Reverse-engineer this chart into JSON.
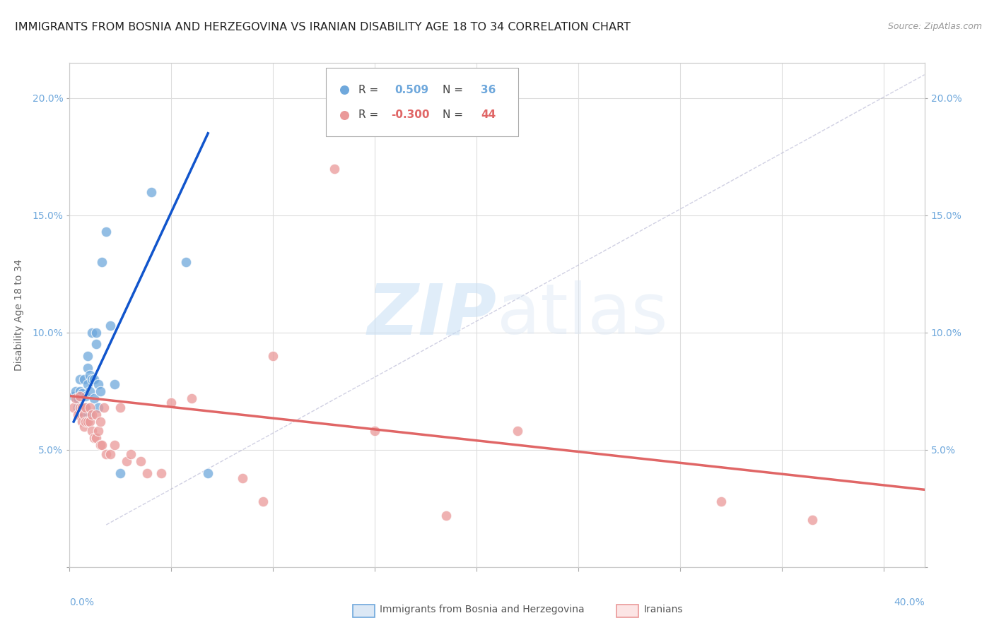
{
  "title": "IMMIGRANTS FROM BOSNIA AND HERZEGOVINA VS IRANIAN DISABILITY AGE 18 TO 34 CORRELATION CHART",
  "source": "Source: ZipAtlas.com",
  "ylabel": "Disability Age 18 to 34",
  "watermark_zip": "ZIP",
  "watermark_atlas": "atlas",
  "blue_color": "#6fa8dc",
  "pink_color": "#ea9999",
  "blue_line_color": "#1155cc",
  "pink_line_color": "#e06666",
  "xlim": [
    0.0,
    0.42
  ],
  "ylim": [
    0.0,
    0.215
  ],
  "xticks": [
    0.0,
    0.05,
    0.1,
    0.15,
    0.2,
    0.25,
    0.3,
    0.35,
    0.4
  ],
  "yticks": [
    0.0,
    0.05,
    0.1,
    0.15,
    0.2
  ],
  "bosnia_points_x": [
    0.002,
    0.003,
    0.004,
    0.004,
    0.005,
    0.005,
    0.006,
    0.006,
    0.007,
    0.007,
    0.007,
    0.008,
    0.008,
    0.009,
    0.009,
    0.009,
    0.01,
    0.01,
    0.01,
    0.011,
    0.011,
    0.012,
    0.012,
    0.013,
    0.013,
    0.014,
    0.014,
    0.015,
    0.016,
    0.018,
    0.02,
    0.022,
    0.025,
    0.04,
    0.057,
    0.068
  ],
  "bosnia_points_y": [
    0.073,
    0.075,
    0.068,
    0.072,
    0.075,
    0.08,
    0.065,
    0.074,
    0.065,
    0.068,
    0.08,
    0.068,
    0.073,
    0.078,
    0.085,
    0.09,
    0.065,
    0.075,
    0.082,
    0.08,
    0.1,
    0.072,
    0.08,
    0.095,
    0.1,
    0.068,
    0.078,
    0.075,
    0.13,
    0.143,
    0.103,
    0.078,
    0.04,
    0.16,
    0.13,
    0.04
  ],
  "iranian_points_x": [
    0.002,
    0.003,
    0.004,
    0.005,
    0.005,
    0.006,
    0.006,
    0.007,
    0.007,
    0.008,
    0.008,
    0.009,
    0.01,
    0.01,
    0.011,
    0.011,
    0.012,
    0.013,
    0.013,
    0.014,
    0.015,
    0.015,
    0.016,
    0.017,
    0.018,
    0.02,
    0.022,
    0.025,
    0.028,
    0.03,
    0.035,
    0.038,
    0.045,
    0.05,
    0.06,
    0.085,
    0.095,
    0.1,
    0.13,
    0.15,
    0.185,
    0.22,
    0.32,
    0.365
  ],
  "iranian_points_y": [
    0.068,
    0.072,
    0.065,
    0.068,
    0.073,
    0.062,
    0.068,
    0.06,
    0.065,
    0.062,
    0.068,
    0.062,
    0.062,
    0.068,
    0.058,
    0.065,
    0.055,
    0.055,
    0.065,
    0.058,
    0.052,
    0.062,
    0.052,
    0.068,
    0.048,
    0.048,
    0.052,
    0.068,
    0.045,
    0.048,
    0.045,
    0.04,
    0.04,
    0.07,
    0.072,
    0.038,
    0.028,
    0.09,
    0.17,
    0.058,
    0.022,
    0.058,
    0.028,
    0.02
  ],
  "bosnia_line_x": [
    0.002,
    0.068
  ],
  "bosnia_line_y": [
    0.062,
    0.185
  ],
  "iranian_line_x": [
    0.0,
    0.42
  ],
  "iranian_line_y": [
    0.073,
    0.033
  ],
  "dashed_line_x": [
    0.018,
    0.42
  ],
  "dashed_line_y": [
    0.018,
    0.21
  ],
  "legend_r1_label": "R = ",
  "legend_r1_val": "0.509",
  "legend_n1_label": "N = ",
  "legend_n1_val": "36",
  "legend_r2_label": "R = ",
  "legend_r2_val": "-0.300",
  "legend_n2_label": "N = ",
  "legend_n2_val": "44"
}
